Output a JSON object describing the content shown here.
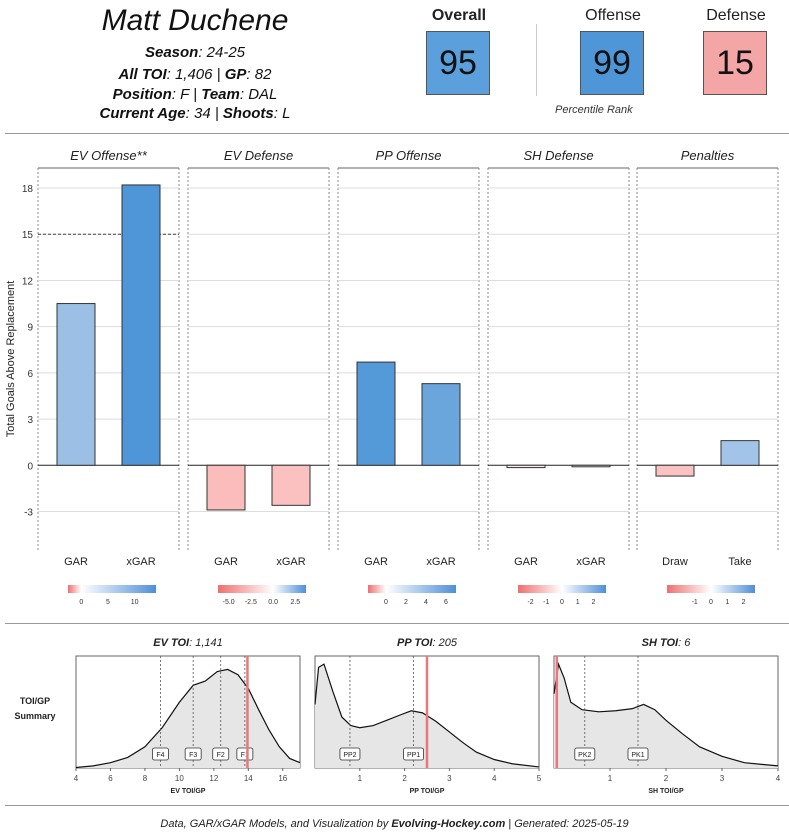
{
  "player": {
    "name": "Matt Duchene",
    "season_label": "Season",
    "season": ": 24-25",
    "toi_label": "All TOI",
    "toi": ": 1,406 | ",
    "gp_label": "GP",
    "gp": ": 82",
    "position_label": "Position",
    "position": ": F | ",
    "team_label": "Team",
    "team": ": DAL",
    "age_label": "Current Age",
    "age": ": 34 | ",
    "shoots_label": "Shoots",
    "shoots": ": L"
  },
  "ranks": {
    "overall_label": "Overall",
    "overall_value": "95",
    "overall_color": "#5b9fdc",
    "offense_label": "Offense",
    "offense_value": "99",
    "offense_color": "#4f96d8",
    "defense_label": "Defense",
    "defense_value": "15",
    "defense_color": "#f4a5a5",
    "percentile_label": "Percentile Rank"
  },
  "chart_data": [
    {
      "type": "bar",
      "title": "Total Goals Above Replacement by component",
      "ylabel": "Total Goals Above Replacement",
      "ylim": [
        -5.5,
        19.3
      ],
      "yticks": [
        -3,
        0,
        3,
        6,
        9,
        12,
        15,
        18
      ],
      "reference_line": {
        "panel": "EV Offense**",
        "value": 15
      },
      "panels": [
        {
          "title": "EV Offense**",
          "categories": [
            "GAR",
            "xGAR"
          ],
          "values": [
            10.5,
            18.2
          ],
          "colors": [
            "#9cbfe6",
            "#4f96d8"
          ],
          "legend": {
            "ticks": [
              "0",
              "5",
              "10"
            ],
            "min": -2.5,
            "max": 14,
            "tick_values": [
              0,
              5,
              10
            ]
          }
        },
        {
          "title": "EV Defense",
          "categories": [
            "GAR",
            "xGAR"
          ],
          "values": [
            -2.9,
            -2.6
          ],
          "colors": [
            "#fbbcbc",
            "#fbc0c0"
          ],
          "legend": {
            "ticks": [
              "-5.0",
              "-2.5",
              "0.0",
              "2.5"
            ],
            "min": -6.2,
            "max": 3.7,
            "tick_values": [
              -5,
              -2.5,
              0,
              2.5
            ]
          }
        },
        {
          "title": "PP Offense",
          "categories": [
            "GAR",
            "xGAR"
          ],
          "values": [
            6.7,
            5.3
          ],
          "colors": [
            "#549ad8",
            "#6aa5dc"
          ],
          "legend": {
            "ticks": [
              "0",
              "2",
              "4",
              "6"
            ],
            "min": -1.8,
            "max": 7,
            "tick_values": [
              0,
              2,
              4,
              6
            ]
          }
        },
        {
          "title": "SH Defense",
          "categories": [
            "GAR",
            "xGAR"
          ],
          "values": [
            -0.15,
            -0.05
          ],
          "colors": [
            "#fdf0f0",
            "#f4f7fb"
          ],
          "legend": {
            "ticks": [
              "-2",
              "-1",
              "0",
              "1",
              "2"
            ],
            "min": -2.8,
            "max": 2.8,
            "tick_values": [
              -2,
              -1,
              0,
              1,
              2
            ]
          }
        },
        {
          "title": "Penalties",
          "categories": [
            "Draw",
            "Take"
          ],
          "values": [
            -0.7,
            1.6
          ],
          "colors": [
            "#f9c3c3",
            "#a2c4e8"
          ],
          "legend": {
            "ticks": [
              "-1",
              "0",
              "1",
              "2"
            ],
            "min": -2.7,
            "max": 2.7,
            "tick_values": [
              -1,
              0,
              1,
              2
            ]
          }
        }
      ]
    },
    {
      "type": "area",
      "title": "TOI/GP Summary",
      "row_label": "TOI/GP\nSummary",
      "panels": [
        {
          "title_bold": "EV TOI",
          "title_rest": ": 1,141",
          "xlabel": "EV TOI/GP",
          "xlim": [
            4,
            17
          ],
          "xticks": [
            4,
            6,
            8,
            10,
            12,
            14,
            16
          ],
          "density": [
            [
              4,
              0.5
            ],
            [
              5,
              2
            ],
            [
              6,
              5
            ],
            [
              7,
              10
            ],
            [
              8,
              20
            ],
            [
              9,
              38
            ],
            [
              10,
              62
            ],
            [
              10.8,
              78
            ],
            [
              11.5,
              82
            ],
            [
              12.2,
              91
            ],
            [
              12.8,
              93
            ],
            [
              13.4,
              88
            ],
            [
              14,
              75
            ],
            [
              14.6,
              55
            ],
            [
              15.2,
              36
            ],
            [
              15.8,
              20
            ],
            [
              16.4,
              9
            ],
            [
              17,
              5
            ]
          ],
          "ymax": 100,
          "markers": [
            {
              "label": "F4",
              "x": 8.9
            },
            {
              "label": "F3",
              "x": 10.8
            },
            {
              "label": "F2",
              "x": 12.4
            },
            {
              "label": "F1",
              "x": 13.8
            }
          ],
          "player_value": 13.95
        },
        {
          "title_bold": "PP TOI",
          "title_rest": ": 205",
          "xlabel": "PP TOI/GP",
          "xlim": [
            0,
            5
          ],
          "xticks": [
            1,
            2,
            3,
            4,
            5
          ],
          "density": [
            [
              0,
              60
            ],
            [
              0.08,
              95
            ],
            [
              0.2,
              98
            ],
            [
              0.4,
              72
            ],
            [
              0.6,
              48
            ],
            [
              0.8,
              40
            ],
            [
              1,
              38
            ],
            [
              1.3,
              40
            ],
            [
              1.6,
              45
            ],
            [
              1.9,
              50
            ],
            [
              2.15,
              54
            ],
            [
              2.4,
              52
            ],
            [
              2.7,
              44
            ],
            [
              3,
              34
            ],
            [
              3.3,
              24
            ],
            [
              3.6,
              15
            ],
            [
              4,
              8
            ],
            [
              4.4,
              4
            ],
            [
              5,
              1
            ]
          ],
          "ymax": 100,
          "markers": [
            {
              "label": "PP2",
              "x": 0.78
            },
            {
              "label": "PP1",
              "x": 2.2
            }
          ],
          "player_value": 2.5
        },
        {
          "title_bold": "SH TOI",
          "title_rest": ": 6",
          "xlabel": "SH TOI/GP",
          "xlim": [
            0,
            4
          ],
          "xticks": [
            1,
            2,
            3,
            4
          ],
          "density": [
            [
              0,
              70
            ],
            [
              0.08,
              98
            ],
            [
              0.18,
              85
            ],
            [
              0.3,
              62
            ],
            [
              0.5,
              55
            ],
            [
              0.8,
              53
            ],
            [
              1.1,
              54
            ],
            [
              1.4,
              56
            ],
            [
              1.6,
              60
            ],
            [
              1.8,
              55
            ],
            [
              2,
              45
            ],
            [
              2.3,
              32
            ],
            [
              2.6,
              20
            ],
            [
              3,
              11
            ],
            [
              3.4,
              5
            ],
            [
              4,
              2
            ]
          ],
          "ymax": 100,
          "markers": [
            {
              "label": "PK2",
              "x": 0.55
            },
            {
              "label": "PK1",
              "x": 1.5
            }
          ],
          "player_value": 0.05
        }
      ]
    }
  ],
  "footer": {
    "prefix": "Data, GAR/xGAR Models, and Visualization by ",
    "site": "Evolving-Hockey.com",
    "suffix": " | Generated: 2025-05-19"
  }
}
